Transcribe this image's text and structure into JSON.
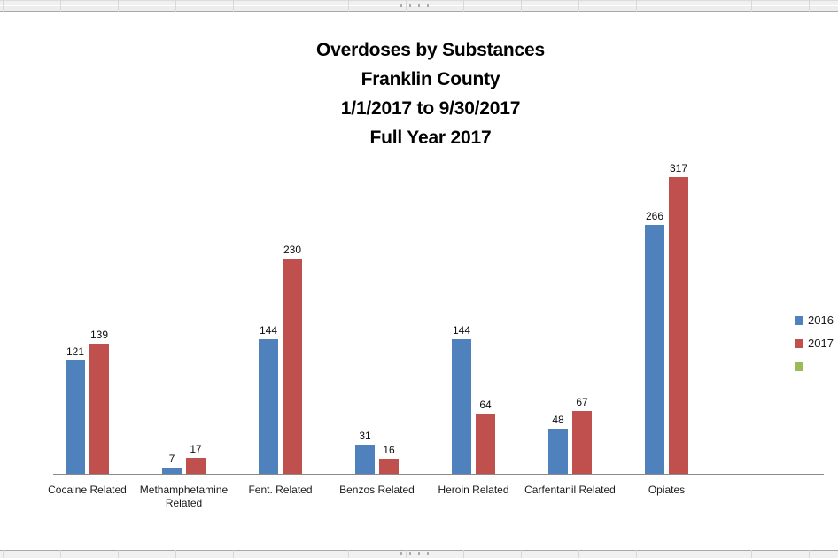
{
  "chart_data": {
    "type": "bar",
    "title": "Overdoses by Substances Franklin County 1/1/2017 to 9/30/2017 Full Year  2017",
    "title_lines": [
      "Overdoses by Substances",
      "Franklin County",
      "1/1/2017 to 9/30/2017",
      "Full Year  2017"
    ],
    "categories": [
      "Cocaine Related",
      "Methamphetamine Related",
      "Fent. Related",
      "Benzos Related",
      "Heroin Related",
      "Carfentanil Related",
      "Opiates"
    ],
    "series": [
      {
        "name": "2016",
        "color": "#4F81BD",
        "values": [
          121,
          7,
          144,
          31,
          144,
          48,
          266
        ]
      },
      {
        "name": "2017",
        "color": "#C0504D",
        "values": [
          139,
          17,
          230,
          16,
          64,
          67,
          317
        ]
      },
      {
        "name": "",
        "color": "#9BBB59",
        "values": []
      }
    ],
    "data_labels": true,
    "grid": false,
    "legend_position": "right",
    "ylim": [
      0,
      350
    ],
    "axis_color": "#8a8a8a"
  }
}
